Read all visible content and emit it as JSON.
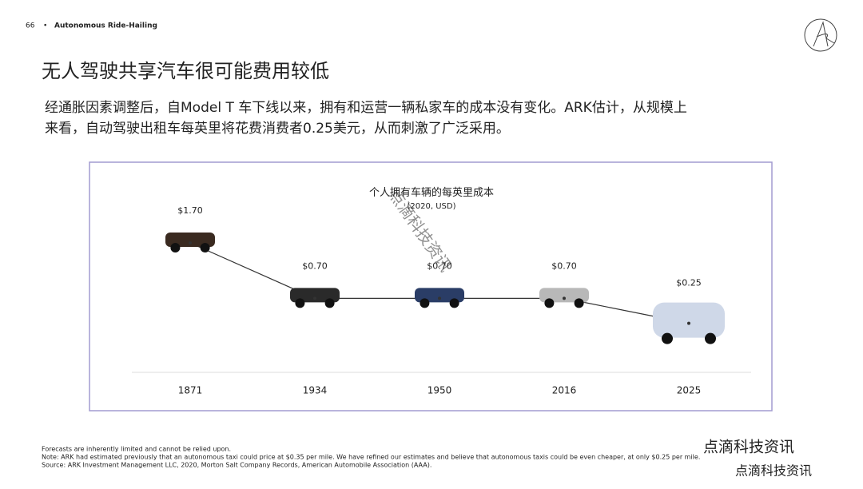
{
  "header": {
    "page": "66",
    "section": "Autonomous Ride-Hailing"
  },
  "title": "无人驾驶共享汽车很可能费用较低",
  "body": [
    "经通胀因素调整后，自Model T 车下线以来，拥有和运营一辆私家车的成本没有变化。ARK估计，从规模上",
    "来看，自动驾驶出租车每英里将花费消费者0.25美元，从而刺激了广泛采用。"
  ],
  "chart_data": {
    "type": "line",
    "title": "个人拥有车辆的每英里成本",
    "subtitle": "(2020, USD)",
    "categories": [
      "1871",
      "1934",
      "1950",
      "2016",
      "2025"
    ],
    "values": [
      1.7,
      0.7,
      0.7,
      0.7,
      0.25
    ],
    "value_labels": [
      "$1.70",
      "$0.70",
      "$0.70",
      "$0.70",
      "$0.25"
    ],
    "color": "#333333"
  },
  "footnotes": [
    "Forecasts are inherently limited and cannot be relied upon.",
    "Note: ARK had estimated previously that an autonomous taxi could price at $0.35 per mile. We have refined our estimates and believe that autonomous taxis could be even cheaper, at only $0.25 per mile.",
    "Source: ARK Investment Management LLC, 2020, Morton Salt Company Records, American Automobile Association (AAA)."
  ],
  "watermark": "点滴科技资讯"
}
